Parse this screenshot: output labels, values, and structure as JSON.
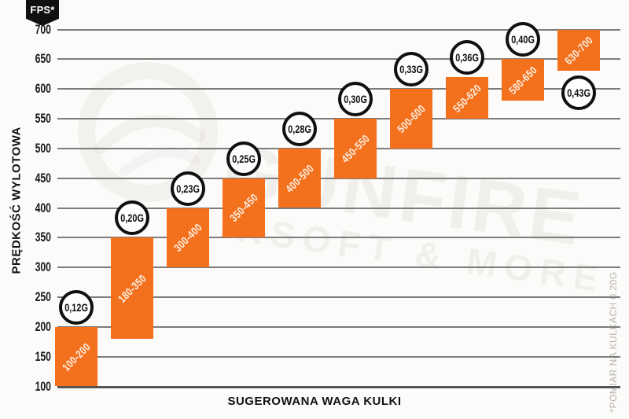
{
  "chart_data": {
    "type": "bar",
    "subtype": "floating-range-bars",
    "title": "",
    "xlabel": "SUGEROWANA WAGA KULKI",
    "ylabel": "PRĘDKOŚĆ WYLOTOWA",
    "unit_badge": "FPS*",
    "footnote": "*POMIAR NA KULKACH 0.20G",
    "ylim": [
      100,
      700
    ],
    "yticks": [
      700,
      650,
      600,
      550,
      500,
      450,
      400,
      350,
      300,
      250,
      200,
      150,
      100
    ],
    "grid": true,
    "legend": "none",
    "bars": [
      {
        "weight": "0,12G",
        "range_label": "100-200",
        "fps_min": 100,
        "fps_max": 200,
        "weight_label_position": "above"
      },
      {
        "weight": "0,20G",
        "range_label": "180-350",
        "fps_min": 180,
        "fps_max": 350,
        "weight_label_position": "above"
      },
      {
        "weight": "0,23G",
        "range_label": "300-400",
        "fps_min": 300,
        "fps_max": 400,
        "weight_label_position": "above"
      },
      {
        "weight": "0,25G",
        "range_label": "350-450",
        "fps_min": 350,
        "fps_max": 450,
        "weight_label_position": "above"
      },
      {
        "weight": "0,28G",
        "range_label": "400-500",
        "fps_min": 400,
        "fps_max": 500,
        "weight_label_position": "above"
      },
      {
        "weight": "0,30G",
        "range_label": "450-550",
        "fps_min": 450,
        "fps_max": 550,
        "weight_label_position": "above"
      },
      {
        "weight": "0,33G",
        "range_label": "500-600",
        "fps_min": 500,
        "fps_max": 600,
        "weight_label_position": "above"
      },
      {
        "weight": "0,36G",
        "range_label": "550-620",
        "fps_min": 550,
        "fps_max": 620,
        "weight_label_position": "above"
      },
      {
        "weight": "0,40G",
        "range_label": "580-650",
        "fps_min": 580,
        "fps_max": 650,
        "weight_label_position": "above"
      },
      {
        "weight": "0,43G",
        "range_label": "630-700",
        "fps_min": 630,
        "fps_max": 700,
        "weight_label_position": "below"
      }
    ],
    "colors": {
      "bar": "#F3701D",
      "bar_label_text": "#FCEFE2",
      "grid": "#7C7C7C",
      "axis_text": "#1A1A1A",
      "badge_bg": "#101010",
      "badge_text": "#FFFFFF",
      "circle_border": "#101010",
      "circle_fill": "#FEFEFE",
      "footnote_text": "#B6B3AF",
      "background": "#FCFBF9"
    },
    "watermark": {
      "line1": "GUNFIRE",
      "line2": "AIRSOFT & MORE"
    }
  }
}
